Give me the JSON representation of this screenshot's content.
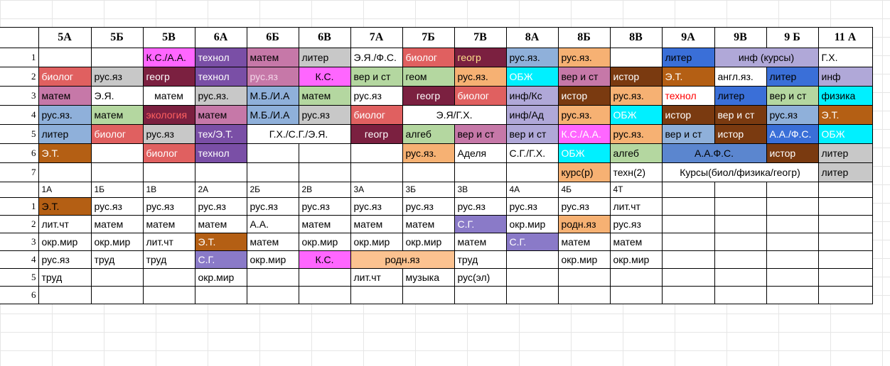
{
  "headers": [
    "",
    "5А",
    "5Б",
    "5В",
    "6А",
    "6Б",
    "6В",
    "7А",
    "7Б",
    "7В",
    "8А",
    "8Б",
    "8В",
    "9А",
    "9В",
    "9 Б",
    "11 А"
  ],
  "senior_rows": [
    {
      "n": "1",
      "cells": [
        {
          "t": ""
        },
        {
          "t": ""
        },
        {
          "t": "К.С./А.А.",
          "bg": "#ff66ff"
        },
        {
          "t": "технол",
          "bg": "#7a4fa6",
          "fg": "#ffffff"
        },
        {
          "t": "матем",
          "bg": "#c678a8"
        },
        {
          "t": "литер",
          "bg": "#c8c8c8"
        },
        {
          "t": "Э.Я./Ф.С."
        },
        {
          "t": "биолог",
          "bg": "#e06060",
          "fg": "#ffffff"
        },
        {
          "t": "геогр",
          "bg": "#7b2040",
          "fg": "#ffe08a"
        },
        {
          "t": "рус.яз.",
          "bg": "#8fb0da"
        },
        {
          "t": "рус.яз.",
          "bg": "#f6b173"
        },
        {
          "t": ""
        },
        {
          "t": "литер",
          "bg": "#3a6fd8"
        },
        {
          "t": "инф (курсы)",
          "bg": "#b0a8d8",
          "span": 2,
          "center": true
        },
        {
          "t": "Г.Х."
        }
      ]
    },
    {
      "n": "2",
      "cells": [
        {
          "t": "биолог",
          "bg": "#e06060",
          "fg": "#ffffff"
        },
        {
          "t": "рус.яз",
          "bg": "#c8c8c8"
        },
        {
          "t": "геогр",
          "bg": "#7b2040",
          "fg": "#ffffff"
        },
        {
          "t": "технол",
          "bg": "#7a4fa6",
          "fg": "#ffffff"
        },
        {
          "t": "рус.яз",
          "bg": "#c678a8",
          "fg": "#f3d5e8"
        },
        {
          "t": "К.С.",
          "bg": "#ff66ff",
          "center": true
        },
        {
          "t": "вер и ст",
          "bg": "#b4d7a0"
        },
        {
          "t": "геом",
          "bg": "#b4d7a0"
        },
        {
          "t": "рус.яз.",
          "bg": "#f6b173"
        },
        {
          "t": "ОБЖ",
          "bg": "#00f0ff",
          "fg": "#ffffff"
        },
        {
          "t": "вер и ст",
          "bg": "#c678a8"
        },
        {
          "t": "истор",
          "bg": "#7a3a10",
          "fg": "#ffffff"
        },
        {
          "t": "Э.Т.",
          "bg": "#b45f14",
          "fg": "#ffffff"
        },
        {
          "t": "англ.яз."
        },
        {
          "t": "литер",
          "bg": "#3a6fd8"
        },
        {
          "t": "инф",
          "bg": "#b0a8d8"
        }
      ]
    },
    {
      "n": "3",
      "cells": [
        {
          "t": "матем",
          "bg": "#c678a8"
        },
        {
          "t": "Э.Я."
        },
        {
          "t": "матем",
          "center": true
        },
        {
          "t": "рус.яз.",
          "bg": "#c8c8c8"
        },
        {
          "t": "М.Б./И.А",
          "bg": "#8fb0da"
        },
        {
          "t": "матем",
          "bg": "#b4d7a0"
        },
        {
          "t": "рус.яз"
        },
        {
          "t": "геогр",
          "bg": "#7b2040",
          "fg": "#ffffff",
          "center": true
        },
        {
          "t": "биолог",
          "bg": "#e06060",
          "fg": "#ffffff"
        },
        {
          "t": "инф/Кс",
          "bg": "#b0a8d8"
        },
        {
          "t": "истор",
          "bg": "#7a3a10",
          "fg": "#ffffff"
        },
        {
          "t": "рус.яз.",
          "bg": "#f6b173"
        },
        {
          "t": "технол",
          "fg": "#ff0000"
        },
        {
          "t": "литер",
          "bg": "#3a6fd8"
        },
        {
          "t": "вер и ст",
          "bg": "#b4d7a0"
        },
        {
          "t": "физика",
          "bg": "#00f0ff"
        }
      ]
    },
    {
      "n": "4",
      "cells": [
        {
          "t": "рус.яз.",
          "bg": "#8fb0da"
        },
        {
          "t": "матем",
          "bg": "#b4d7a0"
        },
        {
          "t": "экология",
          "bg": "#7b2040",
          "fg": "#ff6060"
        },
        {
          "t": "матем",
          "bg": "#c678a8"
        },
        {
          "t": "М.Б./И.А",
          "bg": "#8fb0da"
        },
        {
          "t": "рус.яз",
          "bg": "#c8c8c8"
        },
        {
          "t": "биолог",
          "bg": "#e06060",
          "fg": "#ffffff"
        },
        {
          "t": "Э.Я/Г.Х.",
          "span": 2,
          "center": true
        },
        {
          "t": "инф/Ад",
          "bg": "#b0a8d8"
        },
        {
          "t": "рус.яз.",
          "bg": "#f6b173"
        },
        {
          "t": "ОБЖ",
          "bg": "#00f0ff",
          "fg": "#ffffff"
        },
        {
          "t": "истор",
          "bg": "#7a3a10",
          "fg": "#ffffff"
        },
        {
          "t": "вер и ст",
          "bg": "#7a3a10",
          "fg": "#ffffff"
        },
        {
          "t": "рус.яз",
          "bg": "#8fb0da"
        },
        {
          "t": "Э.Т.",
          "bg": "#b45f14",
          "fg": "#ffffff"
        }
      ]
    },
    {
      "n": "5",
      "cells": [
        {
          "t": "литер",
          "bg": "#8fb0da"
        },
        {
          "t": "биолог",
          "bg": "#e06060",
          "fg": "#ffffff"
        },
        {
          "t": "рус.яз",
          "bg": "#c8c8c8"
        },
        {
          "t": "тех/Э.Т.",
          "bg": "#7a4fa6",
          "fg": "#ffffff"
        },
        {
          "t": "Г.Х./С.Г./Э.Я.",
          "span": 2,
          "center": true
        },
        {
          "t": "геогр",
          "bg": "#7b2040",
          "fg": "#ffffff",
          "center": true
        },
        {
          "t": "алгеб",
          "bg": "#b4d7a0"
        },
        {
          "t": "вер и ст",
          "bg": "#c678a8"
        },
        {
          "t": "вер и ст",
          "bg": "#b0a8d8"
        },
        {
          "t": "К.С./А.А.",
          "bg": "#ff66ff",
          "fg": "#ffffff"
        },
        {
          "t": "рус.яз.",
          "bg": "#f6b173"
        },
        {
          "t": "вер и ст",
          "bg": "#8fb0da"
        },
        {
          "t": "истор",
          "bg": "#7a3a10",
          "fg": "#ffffff"
        },
        {
          "t": "А.А./Ф.С.",
          "bg": "#3a6fd8",
          "fg": "#ffffff"
        },
        {
          "t": "ОБЖ",
          "bg": "#00f0ff",
          "fg": "#ffffff"
        }
      ]
    },
    {
      "n": "6",
      "cells": [
        {
          "t": "Э.Т.",
          "bg": "#b45f14",
          "fg": "#ffffff"
        },
        {
          "t": ""
        },
        {
          "t": "биолог",
          "bg": "#e06060",
          "fg": "#ffffff"
        },
        {
          "t": "технол",
          "bg": "#7a4fa6",
          "fg": "#ffffff"
        },
        {
          "t": ""
        },
        {
          "t": ""
        },
        {
          "t": ""
        },
        {
          "t": "рус.яз.",
          "bg": "#f6b173"
        },
        {
          "t": "Аделя"
        },
        {
          "t": "С.Г./Г.Х."
        },
        {
          "t": "ОБЖ",
          "bg": "#00f0ff",
          "fg": "#ffffff"
        },
        {
          "t": "алгеб",
          "bg": "#b4d7a0"
        },
        {
          "t": "А.А.Ф.С.",
          "bg": "#5b86cf",
          "span": 2,
          "center": true
        },
        {
          "t": "истор",
          "bg": "#7a3a10",
          "fg": "#ffffff"
        },
        {
          "t": "литер",
          "bg": "#c8c8c8"
        }
      ]
    },
    {
      "n": "7",
      "cells": [
        {
          "t": ""
        },
        {
          "t": ""
        },
        {
          "t": ""
        },
        {
          "t": ""
        },
        {
          "t": ""
        },
        {
          "t": ""
        },
        {
          "t": ""
        },
        {
          "t": ""
        },
        {
          "t": ""
        },
        {
          "t": ""
        },
        {
          "t": "курс(р)",
          "bg": "#f6b173"
        },
        {
          "t": "техн(2)"
        },
        {
          "t": "Курсы(биол/физика/геогр)",
          "span": 3,
          "center": true
        },
        {
          "t": "литер",
          "bg": "#c8c8c8"
        }
      ]
    }
  ],
  "junior_headers": [
    "",
    "1А",
    "1Б",
    "1В",
    "2А",
    "2Б",
    "2В",
    "3А",
    "3Б",
    "3В",
    "4А",
    "4Б",
    "4Т",
    "",
    "",
    "",
    ""
  ],
  "junior_rows": [
    {
      "n": "1",
      "cells": [
        {
          "t": "Э.Т.",
          "bg": "#b45f14"
        },
        {
          "t": "рус.яз"
        },
        {
          "t": "рус.яз"
        },
        {
          "t": "рус.яз"
        },
        {
          "t": "рус.яз"
        },
        {
          "t": "рус.яз"
        },
        {
          "t": "рус.яз"
        },
        {
          "t": "рус.яз"
        },
        {
          "t": "рус.яз"
        },
        {
          "t": "рус.яз"
        },
        {
          "t": "рус.яз"
        },
        {
          "t": "лит.чт"
        },
        {
          "t": ""
        },
        {
          "t": ""
        },
        {
          "t": ""
        },
        {
          "t": ""
        }
      ]
    },
    {
      "n": "2",
      "cells": [
        {
          "t": "лит.чт"
        },
        {
          "t": "матем"
        },
        {
          "t": "матем"
        },
        {
          "t": "матем"
        },
        {
          "t": "А.А."
        },
        {
          "t": "матем"
        },
        {
          "t": "матем"
        },
        {
          "t": "матем"
        },
        {
          "t": "С.Г.",
          "bg": "#8a7ac8",
          "fg": "#ffffff"
        },
        {
          "t": "окр.мир"
        },
        {
          "t": "родн.яз",
          "bg": "#f6b173"
        },
        {
          "t": "рус.яз"
        },
        {
          "t": ""
        },
        {
          "t": ""
        },
        {
          "t": ""
        },
        {
          "t": ""
        }
      ]
    },
    {
      "n": "3",
      "cells": [
        {
          "t": "окр.мир"
        },
        {
          "t": "окр.мир"
        },
        {
          "t": "лит.чт"
        },
        {
          "t": "Э.Т.",
          "bg": "#b45f14",
          "fg": "#ffffff"
        },
        {
          "t": "матем"
        },
        {
          "t": "окр.мир"
        },
        {
          "t": "окр.мир"
        },
        {
          "t": "окр.мир"
        },
        {
          "t": "матем"
        },
        {
          "t": "С.Г.",
          "bg": "#8a7ac8",
          "fg": "#ffffff"
        },
        {
          "t": "матем"
        },
        {
          "t": "матем"
        },
        {
          "t": ""
        },
        {
          "t": ""
        },
        {
          "t": ""
        },
        {
          "t": ""
        }
      ]
    },
    {
      "n": "4",
      "cells": [
        {
          "t": "рус.яз"
        },
        {
          "t": "труд"
        },
        {
          "t": "труд"
        },
        {
          "t": "С.Г.",
          "bg": "#8a7ac8",
          "fg": "#ffffff"
        },
        {
          "t": "окр.мир"
        },
        {
          "t": "К.С.",
          "bg": "#ff66ff",
          "center": true
        },
        {
          "t": "родн.яз",
          "bg": "#fcc290",
          "span": 2,
          "center": true
        },
        {
          "t": "труд"
        },
        {
          "t": ""
        },
        {
          "t": "окр.мир"
        },
        {
          "t": "окр.мир"
        },
        {
          "t": ""
        },
        {
          "t": ""
        },
        {
          "t": ""
        },
        {
          "t": ""
        }
      ]
    },
    {
      "n": "5",
      "cells": [
        {
          "t": "труд"
        },
        {
          "t": ""
        },
        {
          "t": ""
        },
        {
          "t": "окр.мир"
        },
        {
          "t": ""
        },
        {
          "t": ""
        },
        {
          "t": "лит.чт"
        },
        {
          "t": "музыка"
        },
        {
          "t": "рус(эл)"
        },
        {
          "t": ""
        },
        {
          "t": ""
        },
        {
          "t": ""
        },
        {
          "t": ""
        },
        {
          "t": ""
        },
        {
          "t": ""
        },
        {
          "t": ""
        }
      ]
    },
    {
      "n": "6",
      "cells": [
        {
          "t": ""
        },
        {
          "t": ""
        },
        {
          "t": ""
        },
        {
          "t": ""
        },
        {
          "t": ""
        },
        {
          "t": ""
        },
        {
          "t": ""
        },
        {
          "t": ""
        },
        {
          "t": ""
        },
        {
          "t": ""
        },
        {
          "t": ""
        },
        {
          "t": ""
        },
        {
          "t": ""
        },
        {
          "t": ""
        },
        {
          "t": ""
        },
        {
          "t": ""
        }
      ]
    }
  ]
}
